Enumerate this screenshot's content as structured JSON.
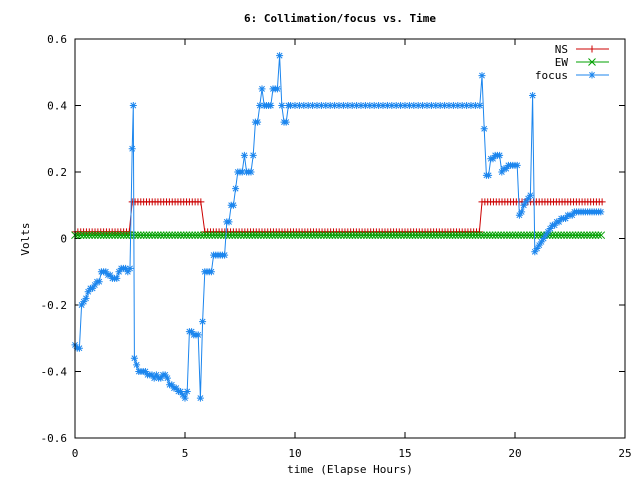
{
  "chart_data": {
    "type": "line",
    "title": "6: Collimation/focus vs. Time",
    "xlabel": "time (Elapse Hours)",
    "ylabel": "Volts",
    "xlim": [
      0,
      25
    ],
    "ylim": [
      -0.6,
      0.6
    ],
    "xticks": [
      "0",
      "5",
      "10",
      "15",
      "20",
      "25"
    ],
    "yticks": [
      "-0.6",
      "-0.4",
      "-0.2",
      "0",
      "0.2",
      "0.4",
      "0.6"
    ],
    "xtick_values": [
      0,
      5,
      10,
      15,
      20,
      25
    ],
    "ytick_values": [
      -0.6,
      -0.4,
      -0.2,
      0,
      0.2,
      0.4,
      0.6
    ],
    "grid": false,
    "legend_position": "top-right",
    "series": [
      {
        "name": "NS",
        "color": "#cc0000",
        "marker": "plus",
        "segments": [
          {
            "x0": 0.0,
            "x1": 2.5,
            "y": 0.02
          },
          {
            "x0": 2.6,
            "x1": 5.8,
            "y": 0.11
          },
          {
            "x0": 5.9,
            "x1": 18.4,
            "y": 0.02
          },
          {
            "x0": 18.5,
            "x1": 24.0,
            "y": 0.11
          }
        ],
        "step": 0.13
      },
      {
        "name": "EW",
        "color": "#00a000",
        "marker": "cross",
        "segments": [
          {
            "x0": 0.0,
            "x1": 24.0,
            "y": 0.01
          }
        ],
        "step": 0.13
      },
      {
        "name": "focus",
        "color": "#1c86ee",
        "marker": "star",
        "points": [
          [
            0.0,
            -0.32
          ],
          [
            0.1,
            -0.33
          ],
          [
            0.2,
            -0.33
          ],
          [
            0.3,
            -0.2
          ],
          [
            0.4,
            -0.19
          ],
          [
            0.5,
            -0.18
          ],
          [
            0.6,
            -0.16
          ],
          [
            0.7,
            -0.15
          ],
          [
            0.8,
            -0.15
          ],
          [
            0.9,
            -0.14
          ],
          [
            1.0,
            -0.13
          ],
          [
            1.1,
            -0.13
          ],
          [
            1.2,
            -0.1
          ],
          [
            1.3,
            -0.1
          ],
          [
            1.4,
            -0.1
          ],
          [
            1.5,
            -0.11
          ],
          [
            1.6,
            -0.11
          ],
          [
            1.7,
            -0.12
          ],
          [
            1.8,
            -0.12
          ],
          [
            1.9,
            -0.12
          ],
          [
            2.0,
            -0.1
          ],
          [
            2.1,
            -0.09
          ],
          [
            2.2,
            -0.09
          ],
          [
            2.3,
            -0.09
          ],
          [
            2.4,
            -0.1
          ],
          [
            2.5,
            -0.09
          ],
          [
            2.6,
            0.27
          ],
          [
            2.65,
            0.4
          ],
          [
            2.7,
            -0.36
          ],
          [
            2.8,
            -0.38
          ],
          [
            2.9,
            -0.4
          ],
          [
            3.0,
            -0.4
          ],
          [
            3.1,
            -0.4
          ],
          [
            3.2,
            -0.4
          ],
          [
            3.3,
            -0.41
          ],
          [
            3.4,
            -0.41
          ],
          [
            3.5,
            -0.41
          ],
          [
            3.6,
            -0.42
          ],
          [
            3.7,
            -0.41
          ],
          [
            3.8,
            -0.42
          ],
          [
            3.9,
            -0.42
          ],
          [
            4.0,
            -0.41
          ],
          [
            4.1,
            -0.41
          ],
          [
            4.2,
            -0.42
          ],
          [
            4.3,
            -0.44
          ],
          [
            4.4,
            -0.44
          ],
          [
            4.5,
            -0.45
          ],
          [
            4.6,
            -0.45
          ],
          [
            4.7,
            -0.46
          ],
          [
            4.8,
            -0.46
          ],
          [
            4.9,
            -0.47
          ],
          [
            5.0,
            -0.48
          ],
          [
            5.1,
            -0.46
          ],
          [
            5.2,
            -0.28
          ],
          [
            5.3,
            -0.28
          ],
          [
            5.4,
            -0.29
          ],
          [
            5.5,
            -0.29
          ],
          [
            5.6,
            -0.29
          ],
          [
            5.7,
            -0.48
          ],
          [
            5.8,
            -0.25
          ],
          [
            5.9,
            -0.1
          ],
          [
            6.0,
            -0.1
          ],
          [
            6.1,
            -0.1
          ],
          [
            6.2,
            -0.1
          ],
          [
            6.3,
            -0.05
          ],
          [
            6.4,
            -0.05
          ],
          [
            6.5,
            -0.05
          ],
          [
            6.6,
            -0.05
          ],
          [
            6.7,
            -0.05
          ],
          [
            6.8,
            -0.05
          ],
          [
            6.9,
            0.05
          ],
          [
            7.0,
            0.05
          ],
          [
            7.1,
            0.1
          ],
          [
            7.2,
            0.1
          ],
          [
            7.3,
            0.15
          ],
          [
            7.4,
            0.2
          ],
          [
            7.5,
            0.2
          ],
          [
            7.6,
            0.2
          ],
          [
            7.7,
            0.25
          ],
          [
            7.8,
            0.2
          ],
          [
            7.9,
            0.2
          ],
          [
            8.0,
            0.2
          ],
          [
            8.1,
            0.25
          ],
          [
            8.2,
            0.35
          ],
          [
            8.3,
            0.35
          ],
          [
            8.4,
            0.4
          ],
          [
            8.5,
            0.45
          ],
          [
            8.6,
            0.4
          ],
          [
            8.7,
            0.4
          ],
          [
            8.8,
            0.4
          ],
          [
            8.9,
            0.4
          ],
          [
            9.0,
            0.45
          ],
          [
            9.1,
            0.45
          ],
          [
            9.2,
            0.45
          ],
          [
            9.3,
            0.55
          ],
          [
            9.4,
            0.4
          ],
          [
            9.5,
            0.35
          ],
          [
            9.6,
            0.35
          ],
          [
            9.7,
            0.4
          ],
          [
            9.8,
            0.4
          ],
          [
            10.0,
            0.4
          ],
          [
            10.2,
            0.4
          ],
          [
            10.4,
            0.4
          ],
          [
            10.6,
            0.4
          ],
          [
            10.8,
            0.4
          ],
          [
            11.0,
            0.4
          ],
          [
            11.2,
            0.4
          ],
          [
            11.4,
            0.4
          ],
          [
            11.6,
            0.4
          ],
          [
            11.8,
            0.4
          ],
          [
            12.0,
            0.4
          ],
          [
            12.2,
            0.4
          ],
          [
            12.4,
            0.4
          ],
          [
            12.6,
            0.4
          ],
          [
            12.8,
            0.4
          ],
          [
            13.0,
            0.4
          ],
          [
            13.2,
            0.4
          ],
          [
            13.4,
            0.4
          ],
          [
            13.6,
            0.4
          ],
          [
            13.8,
            0.4
          ],
          [
            14.0,
            0.4
          ],
          [
            14.2,
            0.4
          ],
          [
            14.4,
            0.4
          ],
          [
            14.6,
            0.4
          ],
          [
            14.8,
            0.4
          ],
          [
            15.0,
            0.4
          ],
          [
            15.2,
            0.4
          ],
          [
            15.4,
            0.4
          ],
          [
            15.6,
            0.4
          ],
          [
            15.8,
            0.4
          ],
          [
            16.0,
            0.4
          ],
          [
            16.2,
            0.4
          ],
          [
            16.4,
            0.4
          ],
          [
            16.6,
            0.4
          ],
          [
            16.8,
            0.4
          ],
          [
            17.0,
            0.4
          ],
          [
            17.2,
            0.4
          ],
          [
            17.4,
            0.4
          ],
          [
            17.6,
            0.4
          ],
          [
            17.8,
            0.4
          ],
          [
            18.0,
            0.4
          ],
          [
            18.2,
            0.4
          ],
          [
            18.4,
            0.4
          ],
          [
            18.5,
            0.49
          ],
          [
            18.6,
            0.33
          ],
          [
            18.7,
            0.19
          ],
          [
            18.8,
            0.19
          ],
          [
            18.9,
            0.24
          ],
          [
            19.0,
            0.24
          ],
          [
            19.1,
            0.25
          ],
          [
            19.2,
            0.25
          ],
          [
            19.3,
            0.25
          ],
          [
            19.4,
            0.2
          ],
          [
            19.5,
            0.21
          ],
          [
            19.6,
            0.21
          ],
          [
            19.7,
            0.22
          ],
          [
            19.8,
            0.22
          ],
          [
            19.9,
            0.22
          ],
          [
            20.0,
            0.22
          ],
          [
            20.1,
            0.22
          ],
          [
            20.2,
            0.07
          ],
          [
            20.3,
            0.08
          ],
          [
            20.4,
            0.1
          ],
          [
            20.5,
            0.11
          ],
          [
            20.6,
            0.12
          ],
          [
            20.7,
            0.13
          ],
          [
            20.8,
            0.43
          ],
          [
            20.9,
            -0.04
          ],
          [
            21.0,
            -0.03
          ],
          [
            21.1,
            -0.02
          ],
          [
            21.2,
            -0.01
          ],
          [
            21.3,
            0.0
          ],
          [
            21.4,
            0.01
          ],
          [
            21.5,
            0.02
          ],
          [
            21.6,
            0.03
          ],
          [
            21.7,
            0.04
          ],
          [
            21.8,
            0.04
          ],
          [
            21.9,
            0.05
          ],
          [
            22.0,
            0.05
          ],
          [
            22.1,
            0.06
          ],
          [
            22.2,
            0.06
          ],
          [
            22.3,
            0.06
          ],
          [
            22.4,
            0.07
          ],
          [
            22.5,
            0.07
          ],
          [
            22.6,
            0.07
          ],
          [
            22.7,
            0.08
          ],
          [
            22.8,
            0.08
          ],
          [
            22.9,
            0.08
          ],
          [
            23.0,
            0.08
          ],
          [
            23.1,
            0.08
          ],
          [
            23.2,
            0.08
          ],
          [
            23.3,
            0.08
          ],
          [
            23.4,
            0.08
          ],
          [
            23.5,
            0.08
          ],
          [
            23.6,
            0.08
          ],
          [
            23.7,
            0.08
          ],
          [
            23.8,
            0.08
          ],
          [
            23.9,
            0.08
          ]
        ]
      }
    ]
  }
}
